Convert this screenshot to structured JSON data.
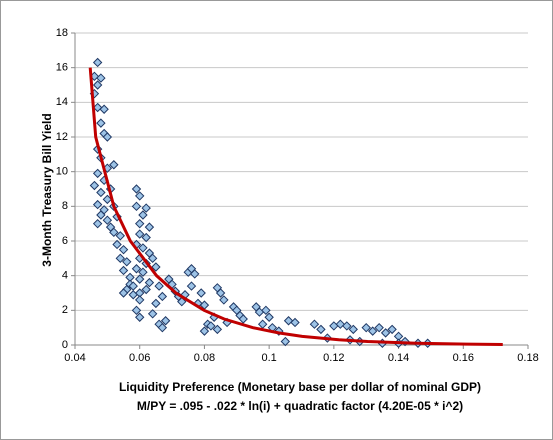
{
  "chart_data": {
    "type": "scatter",
    "x_label": "Liquidity Preference (Monetary base per dollar of nominal GDP)",
    "x_label_2": "M/PY = .095 - .022 * ln(i) + quadratic factor (4.20E-05 * i^2)",
    "y_label": "3-Month Treasury Bill Yield",
    "xlim": [
      0.04,
      0.18
    ],
    "xticks": [
      0.04,
      0.06,
      0.08,
      0.1,
      0.12,
      0.14,
      0.16,
      0.18
    ],
    "ylim": [
      0,
      18
    ],
    "yticks": [
      0,
      2,
      4,
      6,
      8,
      10,
      12,
      14,
      16,
      18
    ],
    "grid": true,
    "series": [
      {
        "type": "scatter",
        "marker": "diamond",
        "color": "#9dc3e6",
        "edge_color": "#1f3864",
        "x": [
          0.047,
          0.046,
          0.047,
          0.048,
          0.046,
          0.047,
          0.049,
          0.048,
          0.049,
          0.05,
          0.047,
          0.048,
          0.05,
          0.047,
          0.049,
          0.046,
          0.048,
          0.05,
          0.047,
          0.049,
          0.048,
          0.05,
          0.047,
          0.052,
          0.051,
          0.052,
          0.051,
          0.053,
          0.052,
          0.054,
          0.053,
          0.055,
          0.054,
          0.056,
          0.055,
          0.057,
          0.056,
          0.055,
          0.058,
          0.057,
          0.06,
          0.059,
          0.06,
          0.059,
          0.062,
          0.061,
          0.06,
          0.063,
          0.06,
          0.062,
          0.059,
          0.061,
          0.063,
          0.06,
          0.064,
          0.062,
          0.059,
          0.061,
          0.065,
          0.06,
          0.063,
          0.058,
          0.062,
          0.066,
          0.06,
          0.059,
          0.06,
          0.064,
          0.066,
          0.067,
          0.068,
          0.065,
          0.067,
          0.069,
          0.07,
          0.071,
          0.072,
          0.073,
          0.074,
          0.075,
          0.076,
          0.077,
          0.076,
          0.078,
          0.079,
          0.08,
          0.081,
          0.08,
          0.082,
          0.083,
          0.084,
          0.085,
          0.086,
          0.087,
          0.084,
          0.089,
          0.09,
          0.091,
          0.092,
          0.096,
          0.097,
          0.099,
          0.1,
          0.098,
          0.101,
          0.103,
          0.105,
          0.106,
          0.108,
          0.114,
          0.116,
          0.118,
          0.12,
          0.122,
          0.124,
          0.126,
          0.125,
          0.128,
          0.13,
          0.132,
          0.134,
          0.136,
          0.138,
          0.14,
          0.14,
          0.142,
          0.146,
          0.149,
          0.135
        ],
        "values": [
          16.3,
          15.5,
          15,
          15.4,
          14.5,
          13.7,
          13.6,
          12.8,
          12.2,
          12,
          11.3,
          10.8,
          10.2,
          9.9,
          9.5,
          9.2,
          8.8,
          8.4,
          8.1,
          7.8,
          7.5,
          7.2,
          7,
          10.4,
          9,
          8,
          6.8,
          7.4,
          6.5,
          6.3,
          5.8,
          5.5,
          5,
          4.8,
          4.3,
          3.9,
          3.2,
          3,
          2.9,
          3.5,
          3,
          9,
          8.6,
          8,
          7.9,
          7.5,
          7,
          6.8,
          6.4,
          6.2,
          5.8,
          5.6,
          5.3,
          5,
          5,
          4.7,
          4.4,
          4.2,
          4.5,
          3.8,
          3.6,
          3.4,
          3.2,
          3.4,
          2.6,
          2,
          1.6,
          1.8,
          1.2,
          1,
          1.4,
          2.4,
          2.8,
          3.8,
          3.5,
          3.1,
          2.8,
          2.5,
          2.9,
          4.2,
          4.4,
          4.1,
          3.4,
          2.4,
          3,
          2.3,
          1.2,
          0.8,
          1.1,
          1.6,
          3.3,
          3,
          2.6,
          1.3,
          0.9,
          2.2,
          2,
          1.7,
          1.5,
          2.2,
          1.9,
          2,
          1.6,
          1.2,
          1,
          0.8,
          0.2,
          1.4,
          1.3,
          1.2,
          0.9,
          0.4,
          1.1,
          1.2,
          1.1,
          0.9,
          0.3,
          0.2,
          1,
          0.8,
          1,
          0.7,
          0.9,
          0.5,
          0.1,
          0.2,
          0.1,
          0.1,
          0.1
        ]
      },
      {
        "type": "line",
        "color": "#c00000",
        "x": [
          0.0447,
          0.0464,
          0.052,
          0.0571,
          0.0652,
          0.0712,
          0.0799,
          0.0861,
          0.095,
          0.1029,
          0.1102,
          0.1215,
          0.1304,
          0.1457,
          0.1609,
          0.1722
        ],
        "values": [
          16,
          12,
          8,
          6,
          4,
          3,
          2,
          1.5,
          1,
          0.7,
          0.5,
          0.3,
          0.2,
          0.1,
          0.05,
          0.03
        ]
      }
    ]
  }
}
